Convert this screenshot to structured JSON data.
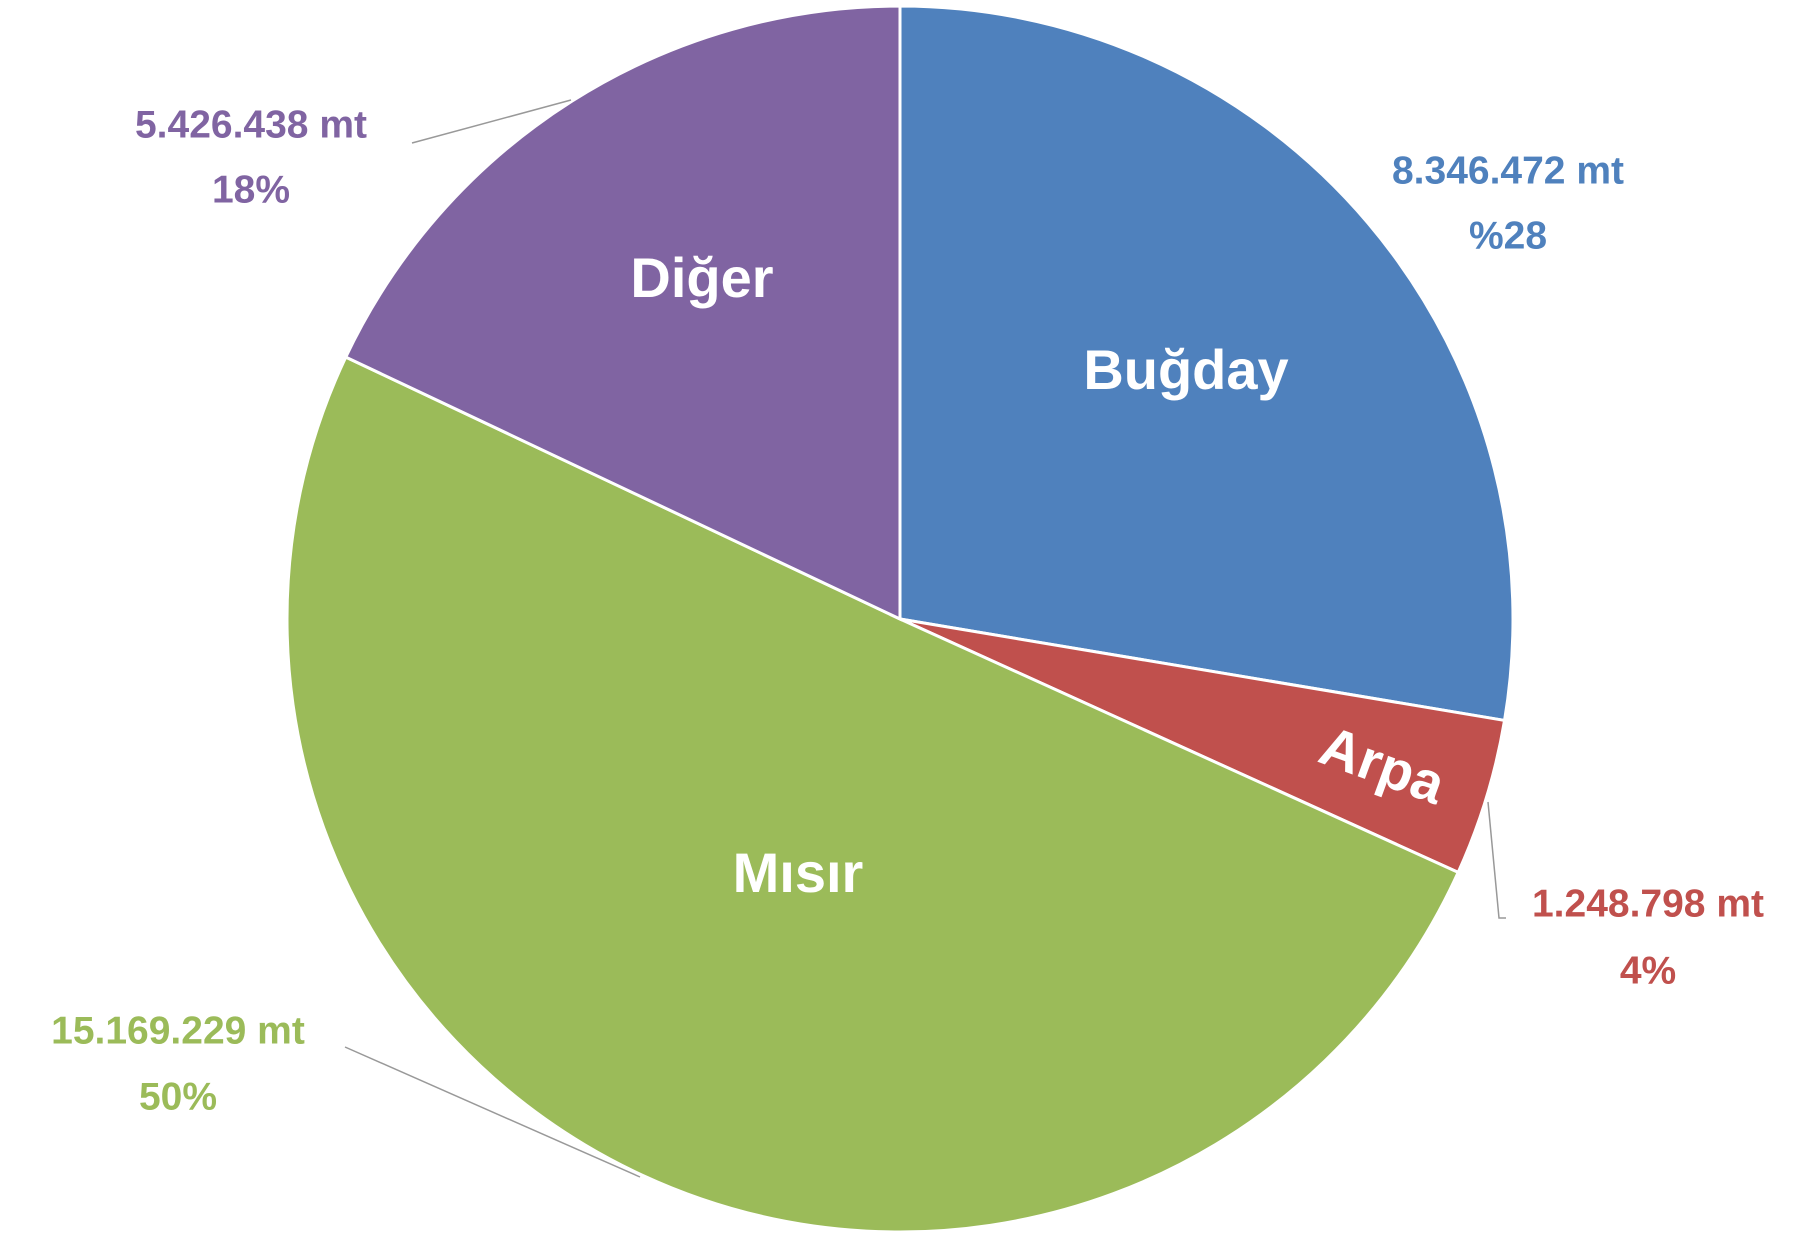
{
  "chart_data": {
    "type": "pie",
    "categories": [
      "Buğday",
      "Arpa",
      "Mısır",
      "Diğer"
    ],
    "values": [
      8346472,
      1248798,
      15169229,
      5426438
    ],
    "value_labels": [
      "8.346.472 mt",
      "1.248.798 mt",
      "15.169.229 mt",
      "5.426.438 mt"
    ],
    "percent_labels": [
      "%28",
      "4%",
      "50%",
      "18%"
    ],
    "colors": [
      "#4f81bd",
      "#c0504d",
      "#9bbb59",
      "#8064a2"
    ]
  }
}
